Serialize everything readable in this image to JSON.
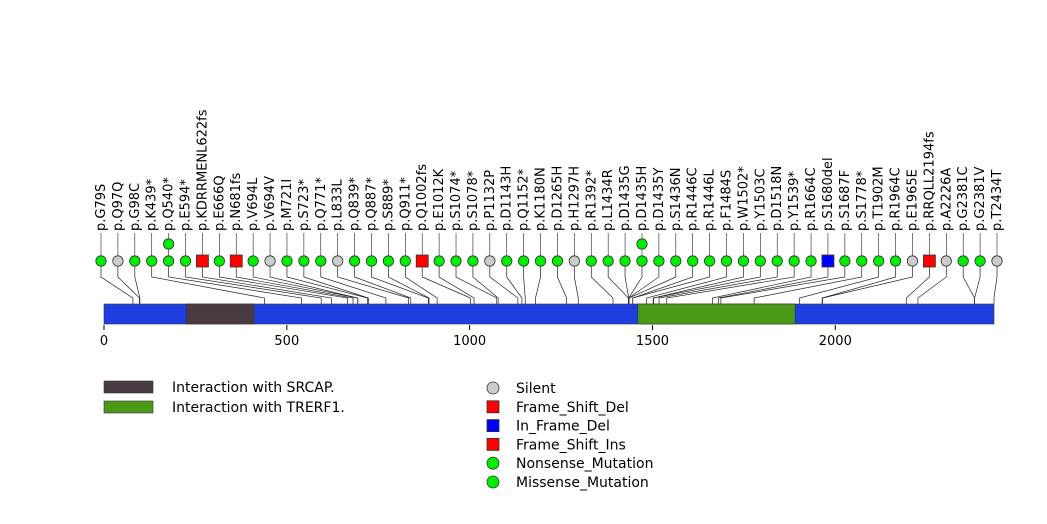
{
  "chart_data": {
    "type": "lollipop",
    "protein_length": 2434,
    "axis": {
      "ticks": [
        0,
        500,
        1000,
        1500,
        2000
      ],
      "labels": [
        "0",
        "500",
        "1000",
        "1500",
        "2000"
      ]
    },
    "domains": [
      {
        "name": "Interaction with SRCAP.",
        "start": 225,
        "end": 410,
        "color": "#4a3a44"
      },
      {
        "name": "Interaction with TRERF1.",
        "start": 1460,
        "end": 1890,
        "color": "#4a9a18"
      }
    ],
    "backbone_color": "#1f3ee0",
    "mutations": [
      {
        "label": "p.G79S",
        "pos": 79,
        "type": "Missense_Mutation",
        "count": 1
      },
      {
        "label": "p.Q97Q",
        "pos": 97,
        "type": "Silent",
        "count": 1
      },
      {
        "label": "p.G98C",
        "pos": 98,
        "type": "Missense_Mutation",
        "count": 1
      },
      {
        "label": "p.K439*",
        "pos": 439,
        "type": "Nonsense_Mutation",
        "count": 1
      },
      {
        "label": "p.Q540*",
        "pos": 540,
        "type": "Nonsense_Mutation",
        "count": 2
      },
      {
        "label": "p.E594*",
        "pos": 594,
        "type": "Nonsense_Mutation",
        "count": 1
      },
      {
        "label": "p.KDRRMENL622fs",
        "pos": 622,
        "type": "Frame_Shift_Del",
        "count": 1
      },
      {
        "label": "p.E666Q",
        "pos": 666,
        "type": "Missense_Mutation",
        "count": 1
      },
      {
        "label": "p.N681fs",
        "pos": 681,
        "type": "Frame_Shift_Ins",
        "count": 1
      },
      {
        "label": "p.V694L",
        "pos": 694,
        "type": "Missense_Mutation",
        "count": 1
      },
      {
        "label": "p.V694V",
        "pos": 694,
        "type": "Silent",
        "count": 1
      },
      {
        "label": "p.M721I",
        "pos": 721,
        "type": "Missense_Mutation",
        "count": 1
      },
      {
        "label": "p.S723*",
        "pos": 723,
        "type": "Nonsense_Mutation",
        "count": 1
      },
      {
        "label": "p.Q771*",
        "pos": 771,
        "type": "Nonsense_Mutation",
        "count": 1
      },
      {
        "label": "p.L833L",
        "pos": 833,
        "type": "Silent",
        "count": 1
      },
      {
        "label": "p.Q839*",
        "pos": 839,
        "type": "Nonsense_Mutation",
        "count": 1
      },
      {
        "label": "p.Q887*",
        "pos": 887,
        "type": "Nonsense_Mutation",
        "count": 1
      },
      {
        "label": "p.S889*",
        "pos": 889,
        "type": "Nonsense_Mutation",
        "count": 1
      },
      {
        "label": "p.Q911*",
        "pos": 911,
        "type": "Nonsense_Mutation",
        "count": 1
      },
      {
        "label": "p.Q1002fs",
        "pos": 1002,
        "type": "Frame_Shift_Del",
        "count": 1
      },
      {
        "label": "p.E1012K",
        "pos": 1012,
        "type": "Missense_Mutation",
        "count": 1
      },
      {
        "label": "p.S1074*",
        "pos": 1074,
        "type": "Nonsense_Mutation",
        "count": 1
      },
      {
        "label": "p.S1078*",
        "pos": 1078,
        "type": "Nonsense_Mutation",
        "count": 1
      },
      {
        "label": "p.P1132P",
        "pos": 1132,
        "type": "Silent",
        "count": 1
      },
      {
        "label": "p.D1143H",
        "pos": 1143,
        "type": "Missense_Mutation",
        "count": 1
      },
      {
        "label": "p.Q1152*",
        "pos": 1152,
        "type": "Nonsense_Mutation",
        "count": 1
      },
      {
        "label": "p.K1180N",
        "pos": 1180,
        "type": "Missense_Mutation",
        "count": 1
      },
      {
        "label": "p.D1265H",
        "pos": 1265,
        "type": "Missense_Mutation",
        "count": 1
      },
      {
        "label": "p.H1297H",
        "pos": 1297,
        "type": "Silent",
        "count": 1
      },
      {
        "label": "p.R1392*",
        "pos": 1392,
        "type": "Nonsense_Mutation",
        "count": 1
      },
      {
        "label": "p.L1434R",
        "pos": 1434,
        "type": "Missense_Mutation",
        "count": 1
      },
      {
        "label": "p.D1435G",
        "pos": 1435,
        "type": "Missense_Mutation",
        "count": 1
      },
      {
        "label": "p.D1435H",
        "pos": 1435,
        "type": "Missense_Mutation",
        "count": 2
      },
      {
        "label": "p.D1435Y",
        "pos": 1435,
        "type": "Missense_Mutation",
        "count": 1
      },
      {
        "label": "p.S1436N",
        "pos": 1436,
        "type": "Missense_Mutation",
        "count": 1
      },
      {
        "label": "p.R1446C",
        "pos": 1446,
        "type": "Missense_Mutation",
        "count": 1
      },
      {
        "label": "p.R1446L",
        "pos": 1446,
        "type": "Missense_Mutation",
        "count": 1
      },
      {
        "label": "p.F1484S",
        "pos": 1484,
        "type": "Missense_Mutation",
        "count": 1
      },
      {
        "label": "p.W1502*",
        "pos": 1502,
        "type": "Nonsense_Mutation",
        "count": 1
      },
      {
        "label": "p.Y1503C",
        "pos": 1503,
        "type": "Missense_Mutation",
        "count": 1
      },
      {
        "label": "p.D1518N",
        "pos": 1518,
        "type": "Missense_Mutation",
        "count": 1
      },
      {
        "label": "p.Y1539*",
        "pos": 1539,
        "type": "Nonsense_Mutation",
        "count": 1
      },
      {
        "label": "p.R1664C",
        "pos": 1664,
        "type": "Missense_Mutation",
        "count": 1
      },
      {
        "label": "p.S1680del",
        "pos": 1680,
        "type": "In_Frame_Del",
        "count": 1
      },
      {
        "label": "p.S1687F",
        "pos": 1687,
        "type": "Missense_Mutation",
        "count": 1
      },
      {
        "label": "p.S1778*",
        "pos": 1778,
        "type": "Nonsense_Mutation",
        "count": 1
      },
      {
        "label": "p.T1902M",
        "pos": 1902,
        "type": "Missense_Mutation",
        "count": 1
      },
      {
        "label": "p.R1964C",
        "pos": 1964,
        "type": "Missense_Mutation",
        "count": 1
      },
      {
        "label": "p.E1965E",
        "pos": 1965,
        "type": "Silent",
        "count": 1
      },
      {
        "label": "p.RRQLL2194fs",
        "pos": 2194,
        "type": "Frame_Shift_Del",
        "count": 1
      },
      {
        "label": "p.A2226A",
        "pos": 2226,
        "type": "Silent",
        "count": 1
      },
      {
        "label": "p.G2381C",
        "pos": 2381,
        "type": "Missense_Mutation",
        "count": 1
      },
      {
        "label": "p.G2381V",
        "pos": 2381,
        "type": "Missense_Mutation",
        "count": 1
      },
      {
        "label": "p.T2434T",
        "pos": 2434,
        "type": "Silent",
        "count": 1
      }
    ],
    "legend_domains": [
      {
        "label": "Interaction with SRCAP.",
        "color": "#4a3a44"
      },
      {
        "label": "Interaction with TRERF1.",
        "color": "#4a9a18"
      }
    ],
    "legend_types": [
      {
        "label": "Silent",
        "shape": "circle",
        "color": "#cccccc"
      },
      {
        "label": "Frame_Shift_Del",
        "shape": "square",
        "color": "#ff0000"
      },
      {
        "label": "In_Frame_Del",
        "shape": "square",
        "color": "#0000ff"
      },
      {
        "label": "Frame_Shift_Ins",
        "shape": "square",
        "color": "#ff0000"
      },
      {
        "label": "Nonsense_Mutation",
        "shape": "circle",
        "color": "#00ee00"
      },
      {
        "label": "Missense_Mutation",
        "shape": "circle",
        "color": "#00ee00"
      }
    ],
    "type_styles": {
      "Silent": {
        "shape": "circle",
        "color": "#cccccc"
      },
      "Frame_Shift_Del": {
        "shape": "square",
        "color": "#ff0000"
      },
      "In_Frame_Del": {
        "shape": "square",
        "color": "#0000ff"
      },
      "Frame_Shift_Ins": {
        "shape": "square",
        "color": "#ff0000"
      },
      "Nonsense_Mutation": {
        "shape": "circle",
        "color": "#00ee00"
      },
      "Missense_Mutation": {
        "shape": "circle",
        "color": "#00ee00"
      }
    }
  }
}
